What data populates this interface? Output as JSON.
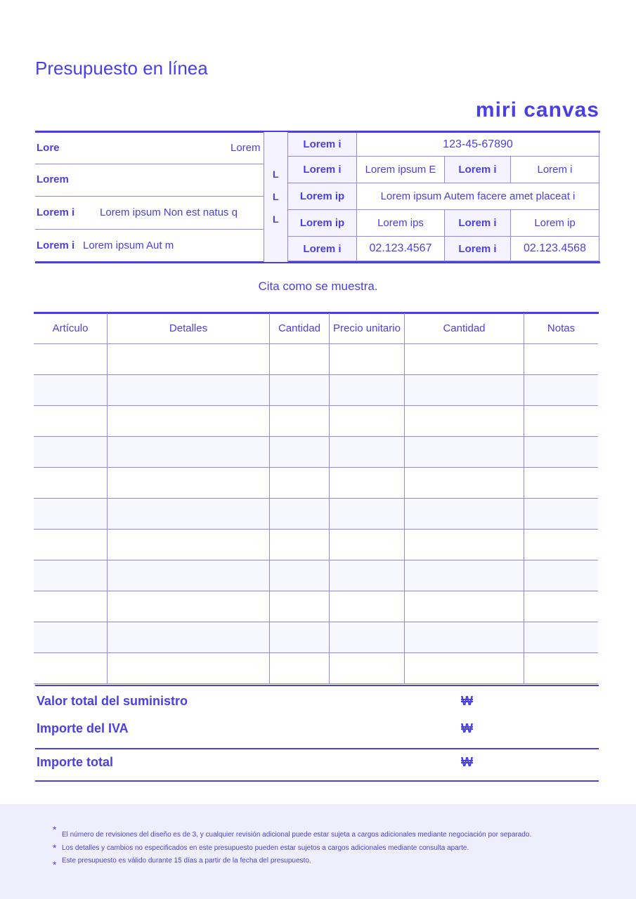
{
  "title": "Presupuesto en línea",
  "logo": "miri canvas",
  "left_block": [
    {
      "label": "Lore",
      "value": "Lorem"
    },
    {
      "label": "Lorem",
      "value": ""
    },
    {
      "label": "Lorem i",
      "value": "Lorem ipsum Non est natus q"
    },
    {
      "label": "Lorem i",
      "value": "Lorem ipsum Aut m"
    }
  ],
  "mid_letters": [
    "L",
    "L",
    "L"
  ],
  "right_block": {
    "r1": {
      "label": "Lorem i",
      "value": "123-45-67890"
    },
    "r2": {
      "label": "Lorem i",
      "value": "Lorem ipsum E",
      "label2": "Lorem i",
      "value2": "Lorem i"
    },
    "r3": {
      "label": "Lorem ip",
      "value": "Lorem ipsum Autem facere amet placeat i"
    },
    "r4": {
      "label": "Lorem ip",
      "value": "Lorem ips",
      "label2": "Lorem i",
      "value2": "Lorem ip"
    },
    "r5": {
      "label": "Lorem i",
      "value": "02.123.4567",
      "label2": "Lorem i",
      "value2": "02.123.4568"
    }
  },
  "subtitle": "Cita como se muestra.",
  "items_table": {
    "headers": [
      "Artículo",
      "Detalles",
      "Cantidad",
      "Precio unitario",
      "Cantidad",
      "Notas"
    ],
    "row_count": 11
  },
  "totals": [
    {
      "label": "Valor total del suministro",
      "currency": "₩"
    },
    {
      "label": "Importe del IVA",
      "currency": "₩"
    },
    {
      "label": "Importe total",
      "currency": "₩"
    }
  ],
  "notes": [
    "El número de revisiones del diseño es de 3, y cualquier revisión adicional puede estar sujeta a cargos adicionales mediante negociación por separado.",
    "Los detalles y cambios no especificados en este presupuesto pueden estar sujetos a cargos adicionales mediante consulta aparte.",
    "Este presupuesto es válido durante 15 días a partir de la fecha del presupuesto."
  ],
  "colors": {
    "accent": "#4a3fe6",
    "footer_bg": "#efeefd",
    "header_bg": "#f4f3ff"
  }
}
